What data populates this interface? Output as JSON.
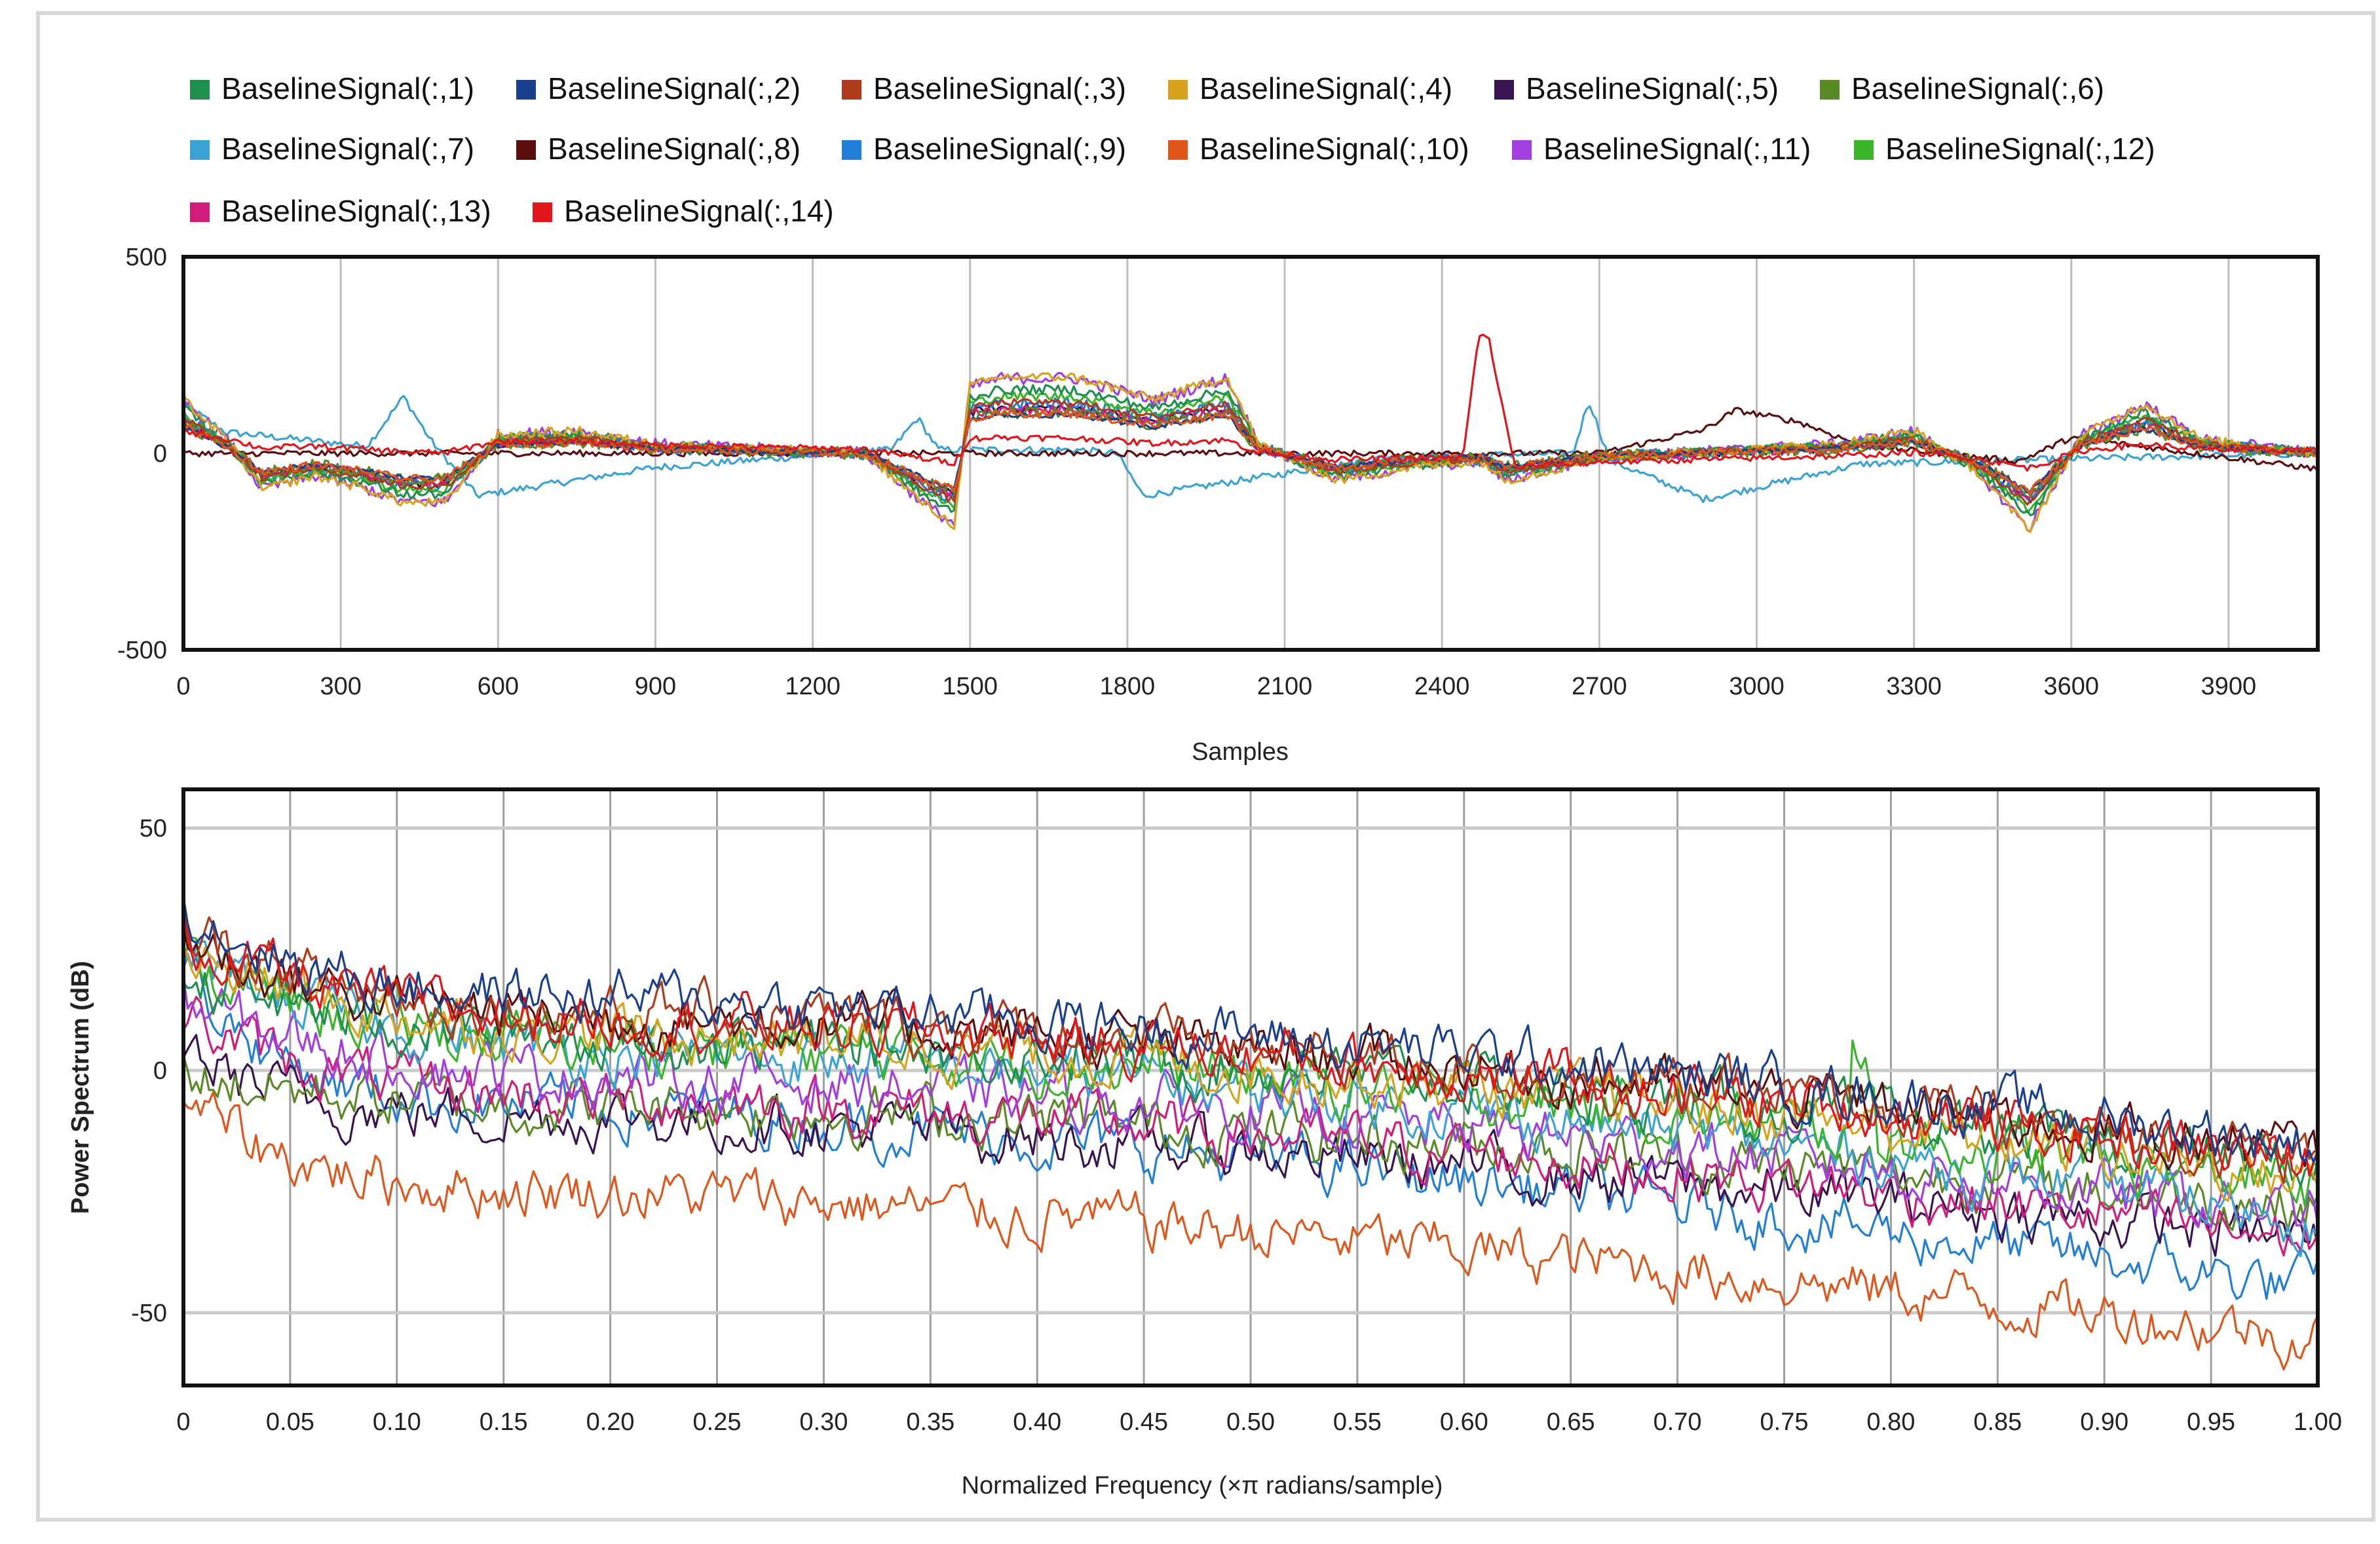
{
  "legend": {
    "entries": [
      {
        "label": "BaselineSignal(:,1)",
        "color": "#1f8f4e"
      },
      {
        "label": "BaselineSignal(:,2)",
        "color": "#1a3f8f"
      },
      {
        "label": "BaselineSignal(:,3)",
        "color": "#b03a1c"
      },
      {
        "label": "BaselineSignal(:,4)",
        "color": "#d8a21c"
      },
      {
        "label": "BaselineSignal(:,5)",
        "color": "#3a1450"
      },
      {
        "label": "BaselineSignal(:,6)",
        "color": "#5a8a26"
      },
      {
        "label": "BaselineSignal(:,7)",
        "color": "#3aa3d4"
      },
      {
        "label": "BaselineSignal(:,8)",
        "color": "#5a0e0e"
      },
      {
        "label": "BaselineSignal(:,9)",
        "color": "#1f7fd8"
      },
      {
        "label": "BaselineSignal(:,10)",
        "color": "#e0561a"
      },
      {
        "label": "BaselineSignal(:,11)",
        "color": "#a23ee0"
      },
      {
        "label": "BaselineSignal(:,12)",
        "color": "#3ab52a"
      },
      {
        "label": "BaselineSignal(:,13)",
        "color": "#d21c7c"
      },
      {
        "label": "BaselineSignal(:,14)",
        "color": "#e0161a"
      }
    ]
  },
  "chart_data": [
    {
      "type": "line",
      "title": "",
      "xlabel": "Samples",
      "ylabel": "",
      "xlim": [
        0,
        4070
      ],
      "ylim": [
        -500,
        500
      ],
      "xticks": [
        0,
        300,
        600,
        900,
        1200,
        1500,
        1800,
        2100,
        2400,
        2700,
        3000,
        3300,
        3600,
        3900
      ],
      "yticks": [
        500,
        0,
        -500
      ],
      "grid": "vertical",
      "series_note": "14 series (BaselineSignal(:,1) ... BaselineSignal(:,14)); approximate envelope traced from figure",
      "anchor_x": [
        0,
        90,
        150,
        250,
        350,
        420,
        500,
        600,
        750,
        900,
        1100,
        1300,
        1420,
        1470,
        1500,
        1560,
        1700,
        1850,
        1990,
        2050,
        2200,
        2350,
        2450,
        2480,
        2520,
        2600,
        2700,
        2850,
        3000,
        3150,
        3300,
        3420,
        3520,
        3620,
        3740,
        3850,
        4070
      ],
      "anchor_y": [
        120,
        20,
        -80,
        -50,
        -80,
        -110,
        -110,
        40,
        50,
        20,
        10,
        0,
        -120,
        -160,
        150,
        170,
        170,
        120,
        170,
        20,
        -60,
        -30,
        -20,
        -20,
        -60,
        -40,
        -10,
        0,
        10,
        20,
        50,
        -40,
        -170,
        40,
        110,
        30,
        0
      ]
    },
    {
      "type": "line",
      "title": "",
      "xlabel": "Normalized Frequency (×π radians/sample)",
      "ylabel": "Power Spectrum (dB)",
      "xlim": [
        0,
        1
      ],
      "ylim": [
        -65,
        58
      ],
      "xticks": [
        "0",
        "0.05",
        "0.10",
        "0.15",
        "0.20",
        "0.25",
        "0.30",
        "0.35",
        "0.40",
        "0.45",
        "0.50",
        "0.55",
        "0.60",
        "0.65",
        "0.70",
        "0.75",
        "0.80",
        "0.85",
        "0.90",
        "0.95",
        "1.00"
      ],
      "yticks": [
        50,
        0,
        -50
      ],
      "grid": "both",
      "series_note": "14 spectra; each decays from ~+35 dB at 0 to between -15 and -55 dB at 1.00",
      "start_db": [
        20,
        35,
        30,
        25,
        5,
        0,
        25,
        28,
        22,
        -5,
        15,
        22,
        12,
        28
      ],
      "end_db": [
        -20,
        -15,
        -18,
        -22,
        -35,
        -28,
        -30,
        -17,
        -45,
        -55,
        -30,
        -24,
        -35,
        -19
      ]
    }
  ]
}
